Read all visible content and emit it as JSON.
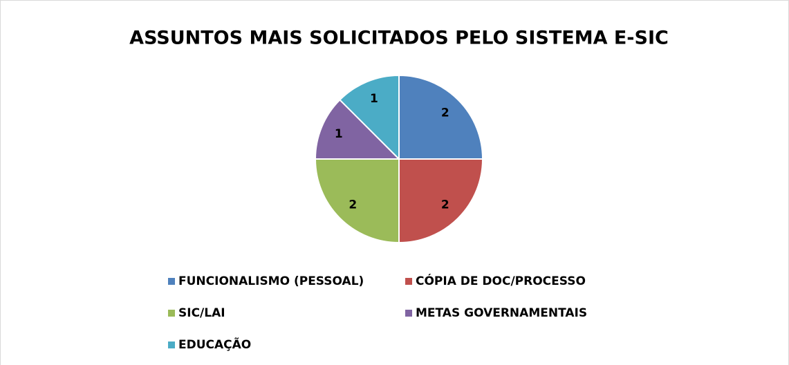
{
  "chart_data": {
    "type": "pie",
    "title": "ASSUNTOS MAIS SOLICITADOS PELO SISTEMA E-SIC",
    "categories": [
      "FUNCIONALISMO (PESSOAL)",
      "CÓPIA DE DOC/PROCESSO",
      "SIC/LAI",
      "METAS GOVERNAMENTAIS",
      "EDUCAÇÃO"
    ],
    "values": [
      2,
      2,
      2,
      1,
      1
    ],
    "colors": [
      "#4f81bd",
      "#c0504d",
      "#9bbb59",
      "#8064a2",
      "#4bacc6"
    ],
    "legend": "bottom"
  }
}
